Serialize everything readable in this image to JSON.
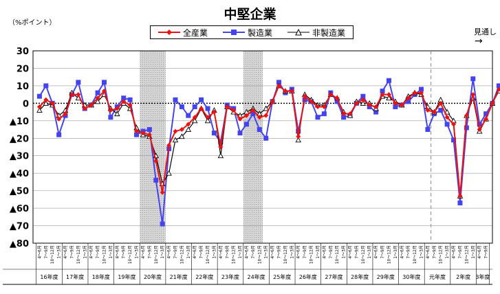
{
  "chart_data": {
    "type": "line",
    "title": "中堅企業",
    "ylabel": "（%ポイント）",
    "ylim": [
      -80,
      30
    ],
    "yticks": [
      30,
      20,
      10,
      0,
      -10,
      -20,
      -30,
      -40,
      -50,
      -60,
      -70,
      -80
    ],
    "ytick_labels": [
      "30",
      "20",
      "10",
      "0",
      "▲10",
      "▲20",
      "▲30",
      "▲40",
      "▲50",
      "▲60",
      "▲70",
      "▲80"
    ],
    "grid": "horizontal",
    "legend_position": "top-center",
    "forecast_label": "見通し",
    "forecast_arrow": "→",
    "quarter_labels": [
      "4～6月",
      "7～9月",
      "10～12月",
      "1～3月"
    ],
    "years": [
      "16年度",
      "17年度",
      "18年度",
      "19年度",
      "20年度",
      "21年度",
      "22年度",
      "23年度",
      "24年度",
      "25年度",
      "26年度",
      "27年度",
      "28年度",
      "29年度",
      "30年度",
      "元年度",
      "2年度",
      "3年度"
    ],
    "year_quarters": [
      4,
      4,
      4,
      4,
      4,
      4,
      4,
      4,
      4,
      4,
      4,
      4,
      4,
      4,
      4,
      4,
      4,
      2
    ],
    "shaded_quarters": [
      [
        16,
        19
      ],
      [
        32,
        34
      ]
    ],
    "dashed_quarter": 60.5,
    "colors": {
      "total": "#ee1111",
      "manufacturing": "#4444ee",
      "non_manufacturing": "#000000"
    },
    "series": [
      {
        "name": "全産業",
        "key": "total",
        "marker": "diamond",
        "values": [
          -2,
          2,
          0,
          -9,
          -6,
          5,
          5,
          -3,
          -1,
          3,
          7,
          -4,
          -3,
          1,
          -1,
          -16,
          -17,
          -18,
          -33,
          -51,
          -24,
          -16,
          -15,
          -12,
          -8,
          -3,
          -8,
          -5,
          -25,
          -2,
          -4,
          -9,
          -7,
          -4,
          -8,
          -7,
          1,
          10,
          7,
          7,
          -19,
          4,
          1,
          -2,
          -2,
          5,
          3,
          -6,
          -6,
          0,
          2,
          -1,
          -2,
          5,
          5,
          0,
          -1,
          3,
          6,
          6,
          -4,
          -5,
          0,
          -8,
          -12,
          -53,
          -7,
          5,
          -15,
          -9,
          0,
          8,
          8
        ]
      },
      {
        "name": "製造業",
        "key": "manufacturing",
        "marker": "square",
        "values": [
          4,
          10,
          0,
          -18,
          -7,
          5,
          12,
          -3,
          -1,
          6,
          12,
          -8,
          -2,
          3,
          2,
          -18,
          -16,
          -15,
          -44,
          -69,
          -26,
          2,
          -2,
          -7,
          -2,
          2,
          -3,
          -17,
          -22,
          -1,
          -3,
          -17,
          -12,
          -6,
          -15,
          -20,
          1,
          12,
          6,
          8,
          -16,
          2,
          1,
          -8,
          -6,
          6,
          1,
          -8,
          -7,
          0,
          4,
          -2,
          -5,
          7,
          13,
          -2,
          -1,
          1,
          5,
          8,
          -15,
          -6,
          -4,
          -12,
          -21,
          -57,
          -14,
          14,
          -12,
          -6,
          0,
          10,
          2
        ]
      },
      {
        "name": "非製造業",
        "key": "non_manufacturing",
        "marker": "triangle",
        "values": [
          -4,
          0,
          -1,
          -7,
          -4,
          6,
          3,
          -1,
          -1,
          1,
          5,
          -3,
          -6,
          0,
          -3,
          -14,
          -18,
          -19,
          -30,
          -46,
          -40,
          -21,
          -19,
          -15,
          -10,
          -3,
          -10,
          -4,
          -30,
          -2,
          -5,
          -7,
          -5,
          -3,
          -6,
          -3,
          1,
          10,
          7,
          7,
          -21,
          5,
          2,
          -1,
          -1,
          5,
          3,
          -5,
          -7,
          1,
          0,
          0,
          -3,
          4,
          3,
          1,
          -1,
          4,
          6,
          5,
          -2,
          -5,
          2,
          -5,
          -10,
          -53,
          -7,
          3,
          -16,
          -9,
          0,
          7,
          8
        ]
      }
    ]
  }
}
